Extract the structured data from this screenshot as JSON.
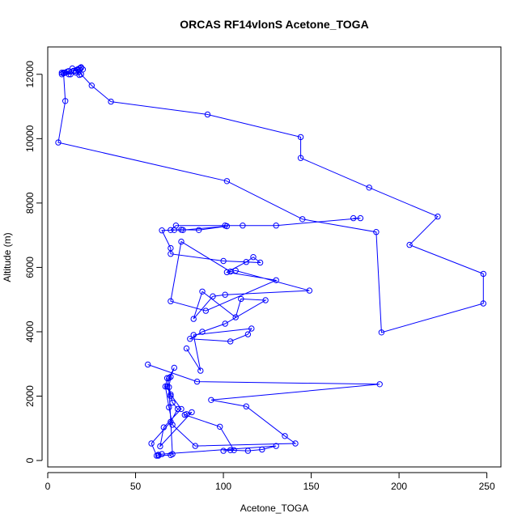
{
  "chart_data": {
    "type": "line",
    "title": "ORCAS RF14vlonS Acetone_TOGA",
    "xlabel": "Acetone_TOGA",
    "ylabel": "Altitude (m)",
    "xlim": [
      0,
      258
    ],
    "ylim": [
      -200,
      12850
    ],
    "xticks": [
      0,
      50,
      100,
      150,
      200,
      250
    ],
    "yticks": [
      0,
      2000,
      4000,
      6000,
      8000,
      10000,
      12000
    ],
    "xtick_labels": [
      "0",
      "50",
      "100",
      "150",
      "200",
      "250"
    ],
    "ytick_labels": [
      "0",
      "2000",
      "4000",
      "6000",
      "8000",
      "10000",
      "12000"
    ],
    "color": "#0000ff",
    "marker": "open-circle",
    "grid": false,
    "legend": "none",
    "series": [
      {
        "x": [
          8,
          9,
          11,
          13,
          15,
          17,
          19,
          18,
          16,
          12,
          10,
          12,
          14,
          19,
          20,
          18,
          16,
          17,
          19,
          25,
          36,
          91,
          144,
          144,
          183,
          222,
          206,
          248,
          248,
          190,
          187,
          145,
          102,
          6,
          10,
          9,
          8
        ],
        "y": [
          12050,
          12030,
          12080,
          12000,
          12100,
          12150,
          12200,
          12180,
          12050,
          12000,
          12050,
          12100,
          12180,
          12220,
          12150,
          11980,
          12100,
          12150,
          12000,
          11650,
          11150,
          10750,
          10050,
          9400,
          8480,
          7580,
          6700,
          5800,
          4880,
          3980,
          7100,
          7500,
          8680,
          9880,
          11170,
          12050,
          12000
        ]
      },
      {
        "x": [
          174,
          178,
          130,
          111,
          101,
          73,
          70,
          76,
          86,
          102,
          77,
          72,
          65,
          70,
          70,
          100,
          121,
          117,
          113,
          102,
          130,
          90,
          70,
          76,
          104,
          107,
          149,
          101,
          94,
          83,
          88,
          107,
          110,
          124,
          101,
          88,
          81,
          104,
          114,
          116,
          83,
          87,
          79
        ],
        "y": [
          7530,
          7530,
          7300,
          7300,
          7300,
          7300,
          7160,
          7170,
          7160,
          7280,
          7160,
          7160,
          7150,
          6600,
          6420,
          6200,
          6150,
          6320,
          6170,
          5850,
          5600,
          4650,
          4950,
          6800,
          5870,
          5900,
          5280,
          5150,
          5100,
          4400,
          5250,
          4450,
          5020,
          4980,
          4250,
          4000,
          3780,
          3700,
          3920,
          4100,
          3900,
          2790,
          3480
        ]
      },
      {
        "x": [
          57,
          85,
          189,
          93,
          113,
          135,
          141,
          84,
          71,
          69,
          67,
          68,
          70,
          76,
          66,
          64,
          82,
          79,
          78,
          98,
          106,
          100,
          104,
          114,
          122,
          130,
          65,
          63,
          62,
          59,
          70,
          74,
          71,
          70,
          68,
          69,
          72,
          70,
          69,
          71,
          70,
          63
        ],
        "y": [
          2980,
          2450,
          2370,
          1880,
          1680,
          760,
          530,
          450,
          1110,
          1650,
          2300,
          2560,
          2050,
          1600,
          1030,
          440,
          1500,
          1440,
          1420,
          1050,
          320,
          300,
          320,
          300,
          340,
          450,
          200,
          180,
          150,
          530,
          1200,
          1600,
          1800,
          2000,
          2300,
          2560,
          2880,
          2600,
          2280,
          200,
          170,
          150
        ]
      }
    ]
  }
}
